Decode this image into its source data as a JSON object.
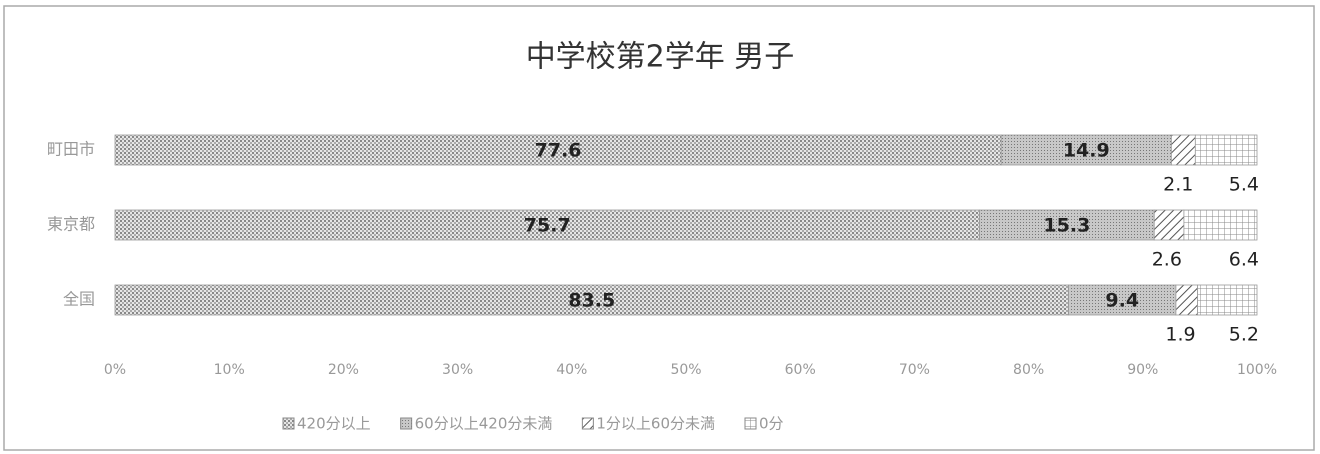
{
  "chart_data": {
    "type": "stacked-bar-horizontal",
    "title": "中学校第2学年 男子",
    "categories": [
      "町田市",
      "東京都",
      "全国"
    ],
    "series": [
      {
        "name": "420分以上",
        "color": "#d4d4d4",
        "values": [
          77.6,
          75.7,
          83.5
        ]
      },
      {
        "name": "60分以上420分未満",
        "color": "#b4b4b4",
        "values": [
          14.9,
          15.3,
          9.4
        ]
      },
      {
        "name": "1分以上60分未満",
        "color": "#ffffff",
        "values": [
          2.1,
          2.6,
          1.9
        ]
      },
      {
        "name": "0分",
        "color": "#ffffff",
        "values": [
          5.4,
          6.4,
          5.2
        ]
      }
    ],
    "xlim": [
      0,
      100
    ],
    "xticks": [
      {
        "value": 0,
        "label": "0%"
      },
      {
        "value": 10,
        "label": "10%"
      },
      {
        "value": 20,
        "label": "20%"
      },
      {
        "value": 30,
        "label": "30%"
      },
      {
        "value": 40,
        "label": "40%"
      },
      {
        "value": 50,
        "label": "50%"
      },
      {
        "value": 60,
        "label": "60%"
      },
      {
        "value": 70,
        "label": "70%"
      },
      {
        "value": 80,
        "label": "80%"
      },
      {
        "value": 90,
        "label": "90%"
      },
      {
        "value": 100,
        "label": "100%"
      }
    ],
    "legend": "bottom"
  }
}
